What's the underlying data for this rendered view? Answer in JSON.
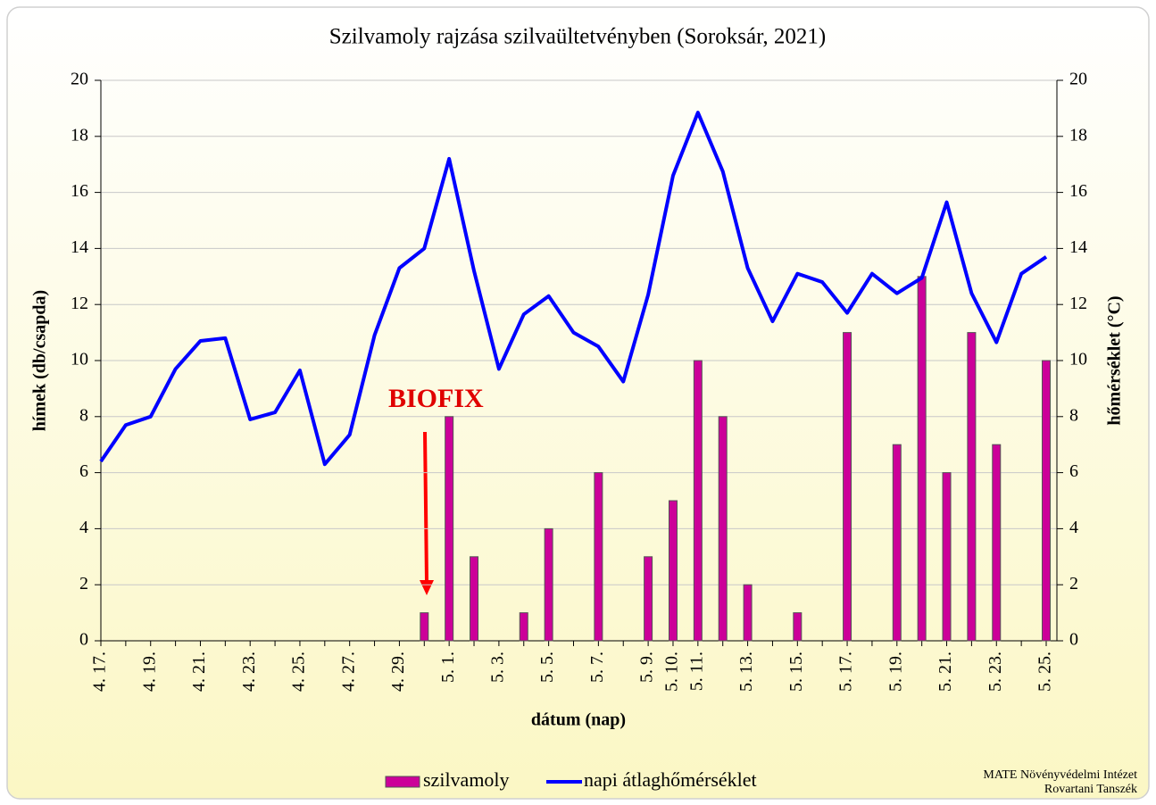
{
  "chart_data": {
    "type": "bar_line",
    "title": "Szilvamoly rajzása szilvaültetvényben (Soroksár, 2021)",
    "y_label": "hímek  (db/csapda)",
    "y2_label": "hőmérséklet (°C)",
    "x_label": "dátum (nap)",
    "annotation": "BIOFIX",
    "footer": [
      "MATE Növényvédelmi Intézet",
      "Rovartani Tanszék"
    ],
    "categories": [
      "4. 17.",
      null,
      "4. 19.",
      null,
      "4. 21.",
      null,
      "4. 23.",
      null,
      "4. 25.",
      null,
      "4. 27.",
      null,
      "4. 29.",
      null,
      "5. 1.",
      null,
      "5. 3.",
      null,
      "5. 5.",
      null,
      "5. 7.",
      null,
      "5. 9.",
      "5. 10.",
      "5. 11.",
      null,
      "5. 13.",
      null,
      "5. 15.",
      null,
      "5. 17.",
      null,
      "5. 19.",
      null,
      "5. 21.",
      null,
      "5. 23.",
      null,
      "5. 25."
    ],
    "series": [
      {
        "name": "szilvamoly",
        "type": "bar",
        "color": "#cc0099",
        "values": [
          0,
          0,
          0,
          0,
          0,
          0,
          0,
          0,
          0,
          0,
          0,
          0,
          0,
          1,
          8,
          3,
          0,
          1,
          4,
          0,
          6,
          0,
          3,
          5,
          10,
          8,
          2,
          0,
          1,
          0,
          11,
          0,
          7,
          13,
          6,
          11,
          7,
          0,
          10
        ]
      },
      {
        "name": "napi átlaghőmérséklet",
        "type": "line",
        "color": "#0000ff",
        "axis": "y2",
        "values": [
          6.4,
          7.7,
          8.0,
          9.7,
          10.7,
          10.8,
          7.9,
          8.15,
          9.65,
          6.3,
          7.35,
          10.9,
          13.3,
          14.0,
          17.2,
          13.2,
          9.7,
          11.65,
          12.3,
          11.0,
          10.5,
          9.25,
          12.35,
          16.6,
          18.85,
          16.75,
          13.3,
          11.4,
          13.1,
          12.8,
          11.7,
          13.1,
          12.4,
          12.95,
          15.65,
          12.4,
          10.65,
          13.1,
          13.7
        ]
      }
    ],
    "ylim": [
      0,
      20
    ],
    "yticks": [
      0,
      2,
      4,
      6,
      8,
      10,
      12,
      14,
      16,
      18,
      20
    ],
    "y2lim": [
      0,
      20
    ],
    "y2ticks": [
      0,
      2,
      4,
      6,
      8,
      10,
      12,
      14,
      16,
      18,
      20
    ],
    "grid": true
  }
}
